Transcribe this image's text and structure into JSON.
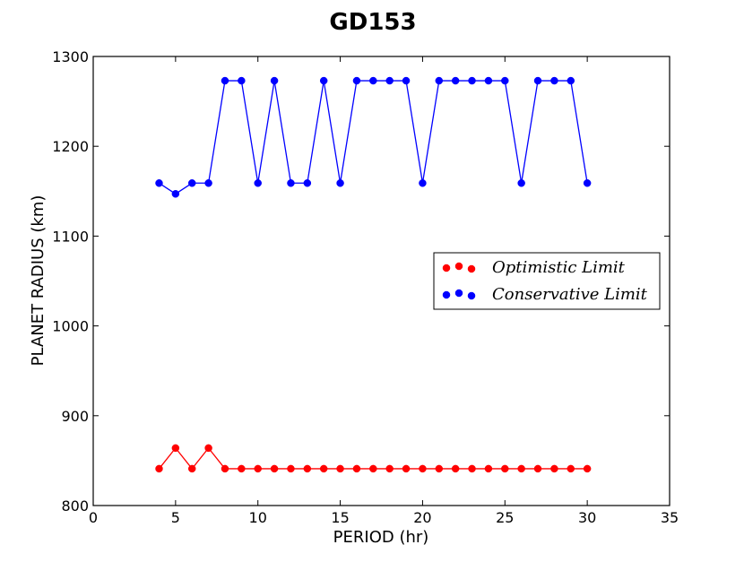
{
  "chart_data": {
    "type": "line",
    "title": "GD153",
    "xlabel": "PERIOD (hr)",
    "ylabel": "PLANET RADIUS (km)",
    "xlim": [
      0,
      35
    ],
    "ylim": [
      800,
      1300
    ],
    "xticks": [
      0,
      5,
      10,
      15,
      20,
      25,
      30,
      35
    ],
    "yticks": [
      800,
      900,
      1000,
      1100,
      1200,
      1300
    ],
    "grid": false,
    "legend_position": "right",
    "x": [
      4,
      5,
      6,
      7,
      8,
      9,
      10,
      11,
      12,
      13,
      14,
      15,
      16,
      17,
      18,
      19,
      20,
      21,
      22,
      23,
      24,
      25,
      26,
      27,
      28,
      29,
      30
    ],
    "series": [
      {
        "name": "Optimistic Limit",
        "color": "#ff0000",
        "values": [
          841,
          864,
          841,
          864,
          841,
          841,
          841,
          841,
          841,
          841,
          841,
          841,
          841,
          841,
          841,
          841,
          841,
          841,
          841,
          841,
          841,
          841,
          841,
          841,
          841,
          841,
          841
        ]
      },
      {
        "name": "Conservative Limit",
        "color": "#0000ff",
        "values": [
          1159,
          1147,
          1159,
          1159,
          1273,
          1273,
          1159,
          1273,
          1159,
          1159,
          1273,
          1159,
          1273,
          1273,
          1273,
          1273,
          1159,
          1273,
          1273,
          1273,
          1273,
          1273,
          1159,
          1273,
          1273,
          1273,
          1159
        ]
      }
    ]
  }
}
